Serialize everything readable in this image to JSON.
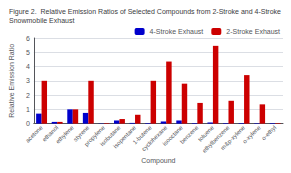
{
  "chart_data": {
    "type": "bar",
    "title": "Figure 2.  Relative Emission Ratios of Selected Compounds from 2-Stroke and 4-Stroke Snowmobile Exhaust",
    "xlabel": "Compound",
    "ylabel": "Relative Emission Ratio",
    "categories": [
      "acetone",
      "ethanol",
      "ethylene",
      "styrene",
      "propylene",
      "isobutane",
      "isopentane",
      "1-butene",
      "cyclohexane",
      "isooctane",
      "benzene",
      "toluene",
      "ethylbenzene",
      "m&p-xylene",
      "o-xylene",
      "o-ethyl"
    ],
    "series": [
      {
        "name": "4-Stroke Exhaust",
        "color": "#0000cc",
        "values": [
          0.7,
          0.12,
          1.0,
          0.75,
          0.02,
          0.22,
          0.05,
          0.04,
          0.15,
          0.22,
          0.04,
          0.08,
          0.04,
          0.04,
          0.04,
          0.04
        ]
      },
      {
        "name": "2-Stroke Exhaust",
        "color": "#cc0000",
        "values": [
          3.0,
          0.12,
          1.0,
          3.0,
          0.04,
          0.32,
          0.62,
          3.0,
          4.35,
          2.8,
          1.45,
          5.45,
          1.6,
          3.4,
          1.35,
          0.04
        ]
      }
    ],
    "ylim": [
      0,
      6
    ],
    "yticks": [
      0,
      1,
      2,
      3,
      4,
      5,
      6
    ],
    "grid": true,
    "legend": "upper right"
  }
}
